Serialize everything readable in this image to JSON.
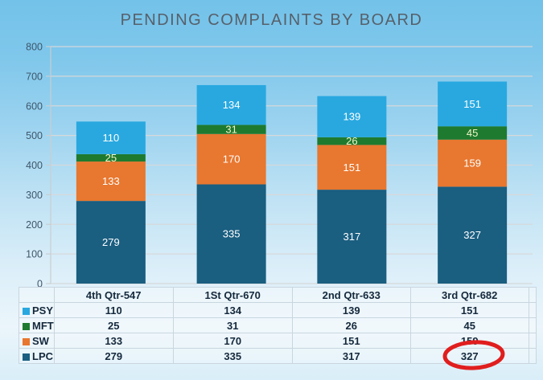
{
  "title": "PENDING COMPLAINTS BY BOARD",
  "colors": {
    "background_top": "#73C2E9",
    "background_bottom": "#D8EDF7",
    "title_text": "#57606A",
    "axis_text": "#3E566A",
    "gridline": "#D6D8DA",
    "axis_line": "#C9CED2",
    "bar_label": "#FFFFFF",
    "table_text": "#15293C",
    "table_border": "#C9D6DE",
    "annotation_red": "#E01E1E"
  },
  "chart_data": {
    "type": "bar",
    "stacked": true,
    "title": "PENDING COMPLAINTS BY BOARD",
    "categories": [
      "4th Qtr-547",
      "1St Qtr-670",
      "2nd Qtr-633",
      "3rd Qtr-682"
    ],
    "category_totals": [
      547,
      670,
      633,
      682
    ],
    "series": [
      {
        "name": "LPC",
        "color": "#1A5E80",
        "label_color": "#FFFFFF",
        "values": [
          279,
          335,
          317,
          327
        ]
      },
      {
        "name": "SW",
        "color": "#E8772F",
        "label_color": "#FFFFFF",
        "values": [
          133,
          170,
          151,
          159
        ]
      },
      {
        "name": "MFT",
        "color": "#1E7A2F",
        "label_color": "#F2F5C9",
        "values": [
          25,
          31,
          26,
          45
        ]
      },
      {
        "name": "PSY",
        "color": "#29A8E0",
        "label_color": "#FFFFFF",
        "values": [
          110,
          134,
          139,
          151
        ]
      }
    ],
    "xlabel": "",
    "ylabel": "",
    "ylim": [
      0,
      800
    ],
    "ytick_interval": 100,
    "grid": true,
    "legend_position": "table-left"
  },
  "table": {
    "row_order": [
      "PSY",
      "MFT",
      "SW",
      "LPC"
    ]
  },
  "annotation": {
    "shape": "ellipse",
    "circled_value": "327",
    "circled_series": "LPC",
    "circled_category": "3rd Qtr-682"
  }
}
